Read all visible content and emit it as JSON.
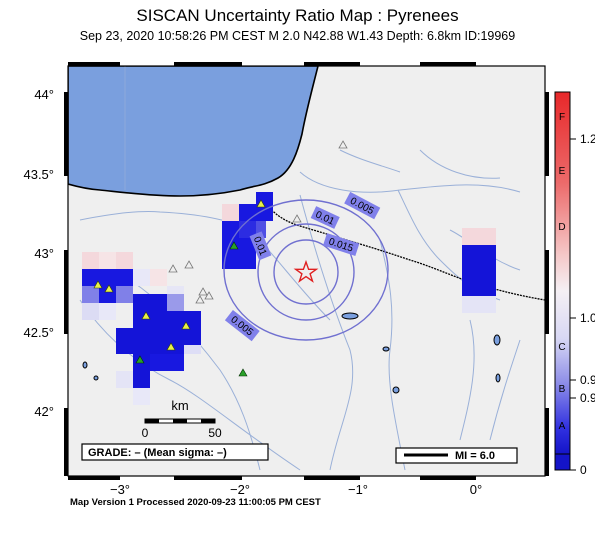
{
  "title": "SISCAN Uncertainty Ratio Map : Pyrenees",
  "subtitle": "Sep 23, 2020 10:58:26 PM CEST   M 2.0   N42.88 W1.43   Depth: 6.8km   ID:19969",
  "footer": "Map Version 1 Processed 2020-09-23 11:00:05 PM CEST",
  "map": {
    "lat_labels": [
      "44°",
      "43.5°",
      "43°",
      "42.5°",
      "42°"
    ],
    "lon_labels": [
      "−3°",
      "−2°",
      "−1°",
      "0°"
    ],
    "contour_labels": [
      "0.005",
      "0.01",
      "0.01",
      "0.015",
      "0.005"
    ],
    "scale_bar": {
      "unit": "km",
      "start": "0",
      "end": "50"
    },
    "grade_text": "GRADE: – (Mean sigma: –)",
    "mi_legend": "MI = 6.0",
    "colors": {
      "land": "#efefef",
      "sea": "#7a9fde",
      "river": "#9ab0d8",
      "contour": "#7070d0",
      "epicenter": "#e02020"
    }
  },
  "colorbar": {
    "letters": [
      "F",
      "E",
      "D",
      "C",
      "B",
      "A"
    ],
    "values": [
      "1.2",
      "1.0",
      "0.9",
      "0.9",
      "0"
    ]
  }
}
